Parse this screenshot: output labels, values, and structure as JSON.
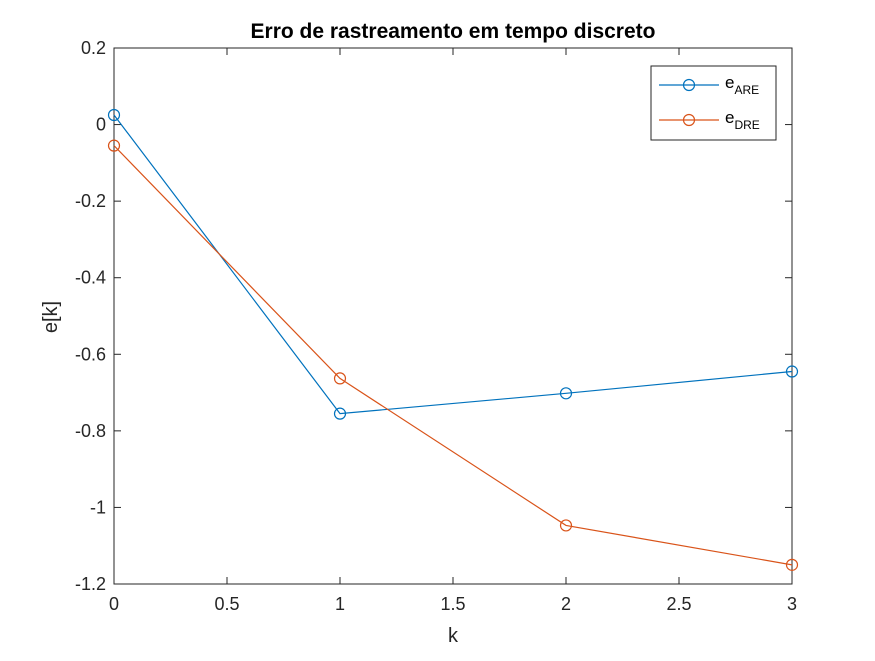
{
  "chart_data": {
    "type": "line",
    "title": "Erro de rastreamento em tempo discreto",
    "xlabel": "k",
    "ylabel": "e[k]",
    "xlim": [
      0,
      3
    ],
    "ylim": [
      -1.2,
      0.2
    ],
    "xticks": [
      0,
      0.5,
      1,
      1.5,
      2,
      2.5,
      3
    ],
    "yticks": [
      0.2,
      0,
      -0.2,
      -0.4,
      -0.6,
      -0.8,
      -1,
      -1.2
    ],
    "xtick_labels": [
      "0",
      "0.5",
      "1",
      "1.5",
      "2",
      "2.5",
      "3"
    ],
    "ytick_labels": [
      "0.2",
      "0",
      "-0.2",
      "-0.4",
      "-0.6",
      "-0.8",
      "-1",
      "-1.2"
    ],
    "grid": false,
    "legend_position": "top-right",
    "x": [
      0,
      1,
      2,
      3
    ],
    "series": [
      {
        "name_main": "e",
        "name_sub": "ARE",
        "color": "#0072BD",
        "marker": "circle",
        "values": [
          0.025,
          -0.755,
          -0.702,
          -0.645
        ]
      },
      {
        "name_main": "e",
        "name_sub": "DRE",
        "color": "#D95319",
        "marker": "circle",
        "values": [
          -0.055,
          -0.663,
          -1.047,
          -1.15
        ]
      }
    ]
  }
}
